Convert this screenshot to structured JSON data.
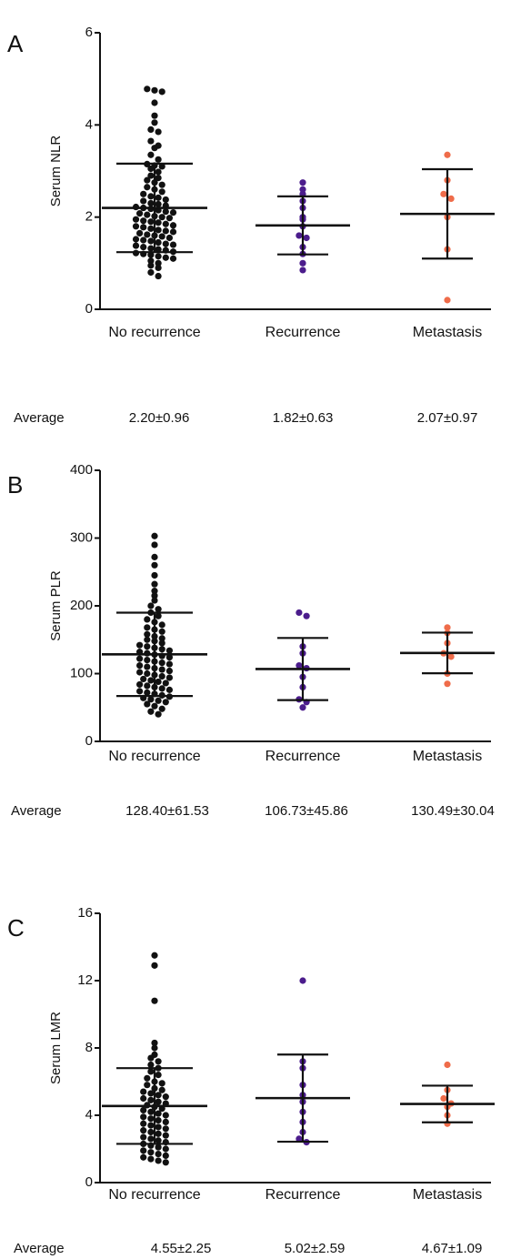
{
  "chart_data": [
    {
      "type": "scatter",
      "panel_label": "A",
      "ylabel": "Serum NLR",
      "ylim": [
        0,
        6
      ],
      "yticks": [
        0,
        2,
        4,
        6
      ],
      "categories": [
        "No recurrence",
        "Recurrence",
        "Metastasis"
      ],
      "series": [
        {
          "name": "No recurrence",
          "color": "#111111",
          "mean": 2.2,
          "sd_low": 1.24,
          "sd_high": 3.16,
          "values": [
            4.78,
            4.75,
            4.72,
            4.48,
            4.2,
            4.05,
            3.9,
            3.85,
            3.65,
            3.55,
            3.5,
            3.35,
            3.25,
            3.15,
            3.12,
            3.1,
            3.05,
            2.98,
            2.9,
            2.85,
            2.8,
            2.75,
            2.7,
            2.65,
            2.6,
            2.55,
            2.5,
            2.45,
            2.42,
            2.38,
            2.35,
            2.3,
            2.28,
            2.25,
            2.22,
            2.2,
            2.18,
            2.15,
            2.12,
            2.1,
            2.08,
            2.05,
            2.02,
            2.0,
            1.98,
            1.95,
            1.92,
            1.9,
            1.88,
            1.85,
            1.82,
            1.8,
            1.78,
            1.75,
            1.72,
            1.7,
            1.68,
            1.65,
            1.62,
            1.6,
            1.58,
            1.55,
            1.52,
            1.5,
            1.48,
            1.45,
            1.42,
            1.4,
            1.38,
            1.35,
            1.32,
            1.3,
            1.28,
            1.25,
            1.22,
            1.2,
            1.18,
            1.15,
            1.12,
            1.1,
            1.05,
            1.0,
            0.95,
            0.9,
            0.8,
            0.72
          ]
        },
        {
          "name": "Recurrence",
          "color": "#4b1c8c",
          "mean": 1.82,
          "sd_low": 1.19,
          "sd_high": 2.45,
          "values": [
            2.75,
            2.6,
            2.5,
            2.35,
            2.2,
            2.0,
            1.95,
            1.8,
            1.6,
            1.55,
            1.35,
            1.2,
            1.0,
            0.85
          ]
        },
        {
          "name": "Metastasis",
          "color": "#ef6c4a",
          "mean": 2.07,
          "sd_low": 1.1,
          "sd_high": 3.04,
          "values": [
            3.35,
            2.8,
            2.5,
            2.4,
            2.0,
            1.3,
            0.2
          ]
        }
      ],
      "average_label": "Average",
      "averages": [
        "2.20±0.96",
        "1.82±0.63",
        "2.07±0.97"
      ]
    },
    {
      "type": "scatter",
      "panel_label": "B",
      "ylabel": "Serum PLR",
      "ylim": [
        0,
        400
      ],
      "yticks": [
        0,
        100,
        200,
        300,
        400
      ],
      "categories": [
        "No recurrence",
        "Recurrence",
        "Metastasis"
      ],
      "series": [
        {
          "name": "No recurrence",
          "color": "#111111",
          "mean": 128.4,
          "sd_low": 66.9,
          "sd_high": 189.9,
          "values": [
            303,
            290,
            272,
            260,
            245,
            232,
            222,
            215,
            208,
            200,
            195,
            190,
            185,
            180,
            176,
            172,
            168,
            165,
            162,
            158,
            155,
            152,
            150,
            148,
            145,
            142,
            140,
            138,
            136,
            134,
            132,
            130,
            128,
            126,
            124,
            122,
            120,
            118,
            116,
            114,
            112,
            110,
            108,
            106,
            104,
            102,
            100,
            98,
            96,
            94,
            92,
            90,
            88,
            86,
            84,
            82,
            80,
            78,
            76,
            74,
            72,
            70,
            68,
            66,
            64,
            62,
            60,
            58,
            55,
            52,
            48,
            44,
            40
          ]
        },
        {
          "name": "Recurrence",
          "color": "#4b1c8c",
          "mean": 106.73,
          "sd_low": 60.9,
          "sd_high": 152.6,
          "values": [
            190,
            185,
            140,
            130,
            112,
            108,
            95,
            80,
            62,
            58,
            50
          ]
        },
        {
          "name": "Metastasis",
          "color": "#ef6c4a",
          "mean": 130.49,
          "sd_low": 100.5,
          "sd_high": 160.5,
          "values": [
            168,
            160,
            145,
            130,
            125,
            100,
            85
          ]
        }
      ],
      "average_label": "Average",
      "averages": [
        "128.40±61.53",
        "106.73±45.86",
        "130.49±30.04"
      ]
    },
    {
      "type": "scatter",
      "panel_label": "C",
      "ylabel": "Serum LMR",
      "ylim": [
        0,
        16
      ],
      "yticks": [
        0,
        4,
        8,
        12,
        16
      ],
      "categories": [
        "No recurrence",
        "Recurrence",
        "Metastasis"
      ],
      "series": [
        {
          "name": "No recurrence",
          "color": "#111111",
          "mean": 4.55,
          "sd_low": 2.3,
          "sd_high": 6.8,
          "values": [
            13.5,
            12.9,
            10.8,
            8.3,
            8.0,
            7.6,
            7.4,
            7.2,
            7.0,
            6.8,
            6.6,
            6.4,
            6.2,
            6.0,
            5.9,
            5.8,
            5.6,
            5.5,
            5.4,
            5.3,
            5.2,
            5.1,
            5.0,
            4.9,
            4.8,
            4.7,
            4.6,
            4.5,
            4.4,
            4.3,
            4.2,
            4.1,
            4.0,
            3.9,
            3.8,
            3.7,
            3.6,
            3.5,
            3.4,
            3.3,
            3.2,
            3.1,
            3.0,
            2.9,
            2.8,
            2.7,
            2.6,
            2.5,
            2.4,
            2.3,
            2.2,
            2.1,
            2.0,
            1.9,
            1.8,
            1.7,
            1.6,
            1.5,
            1.4,
            1.3,
            1.2
          ]
        },
        {
          "name": "Recurrence",
          "color": "#4b1c8c",
          "mean": 5.02,
          "sd_low": 2.43,
          "sd_high": 7.61,
          "values": [
            12.0,
            7.2,
            6.8,
            5.8,
            5.2,
            4.8,
            4.2,
            3.6,
            3.0,
            2.6,
            2.4
          ]
        },
        {
          "name": "Metastasis",
          "color": "#ef6c4a",
          "mean": 4.67,
          "sd_low": 3.58,
          "sd_high": 5.76,
          "values": [
            7.0,
            5.5,
            5.0,
            4.7,
            4.5,
            4.0,
            3.5
          ]
        }
      ],
      "average_label": "Average",
      "averages": [
        "4.55±2.25",
        "5.02±2.59",
        "4.67±1.09"
      ]
    }
  ]
}
